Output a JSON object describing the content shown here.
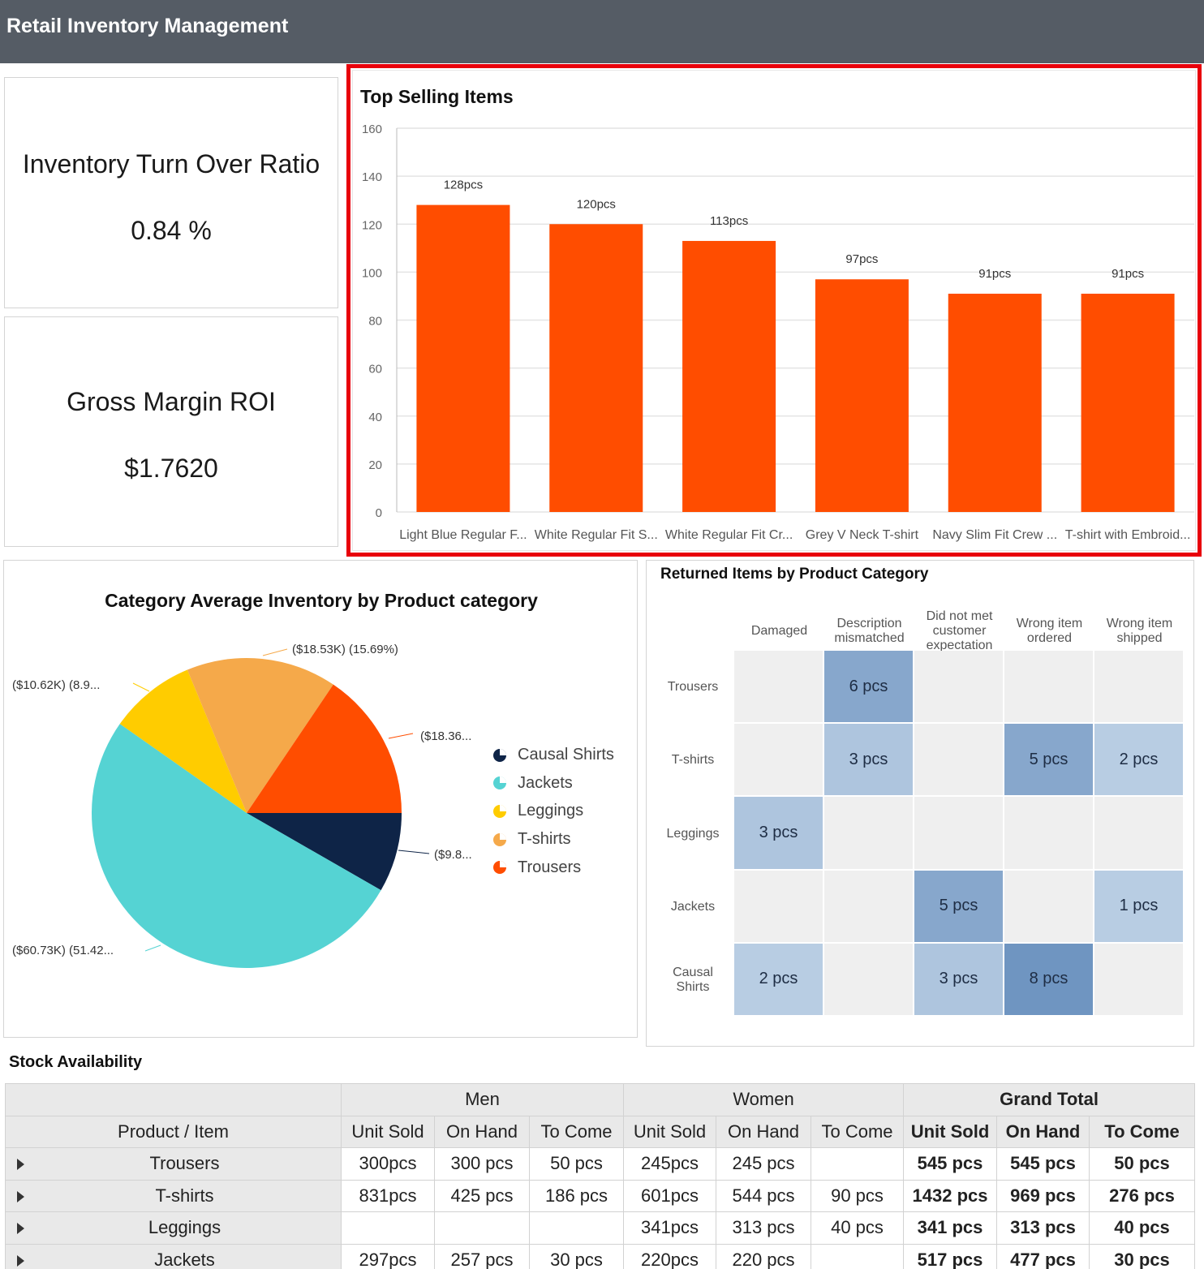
{
  "app": {
    "title": "Retail Inventory Management"
  },
  "kpis": [
    {
      "title": "Inventory Turn Over Ratio",
      "value": "0.84 %"
    },
    {
      "title": "Gross Margin ROI",
      "value": "$1.7620"
    }
  ],
  "colors": {
    "header_bg": "#555c65",
    "bar": "#ff4d00",
    "highlight": "#e8000b",
    "causal_shirts": "#0e2447",
    "jackets": "#55d3d3",
    "leggings": "#ffcc00",
    "tshirts": "#f5a94a",
    "trousers": "#ff4d00"
  },
  "top_selling": {
    "title": "Top Selling Items",
    "chart_data": {
      "type": "bar",
      "categories": [
        "Light Blue Regular F...",
        "White Regular Fit S...",
        "White Regular Fit Cr...",
        "Grey V Neck T-shirt",
        "Navy Slim Fit Crew ...",
        "T-shirt with Embroid..."
      ],
      "values": [
        128,
        120,
        113,
        97,
        91,
        91
      ],
      "data_labels": [
        "128pcs",
        "120pcs",
        "113pcs",
        "97pcs",
        "91pcs",
        "91pcs"
      ],
      "yticks": [
        "0",
        "20",
        "40",
        "60",
        "80",
        "100",
        "120",
        "140",
        "160"
      ],
      "ylim": [
        0,
        160
      ],
      "grid": true
    }
  },
  "category_inventory": {
    "title": "Category Average Inventory by Product category",
    "chart_data": {
      "type": "pie",
      "slices": [
        {
          "name": "Causal Shirts",
          "value": 9.8,
          "label": "($9.8...",
          "color": "#0e2447"
        },
        {
          "name": "Jackets",
          "value": 60.73,
          "label": "($60.73K) (51.42...",
          "color": "#55d3d3"
        },
        {
          "name": "Leggings",
          "value": 10.62,
          "label": "($10.62K) (8.9...",
          "color": "#ffcc00"
        },
        {
          "name": "T-shirts",
          "value": 18.53,
          "label": "($18.53K) (15.69%)",
          "color": "#f5a94a"
        },
        {
          "name": "Trousers",
          "value": 18.36,
          "label": "($18.36...",
          "color": "#ff4d00"
        }
      ],
      "legend": [
        "Causal Shirts",
        "Jackets",
        "Leggings",
        "T-shirts",
        "Trousers"
      ],
      "legend_position": "right"
    }
  },
  "returned_items": {
    "title": "Returned Items by Product Category",
    "chart_data": {
      "type": "heatmap",
      "columns": [
        "Damaged",
        "Description mismatched",
        "Did not met customer expectation",
        "Wrong item ordered",
        "Wrong item shipped"
      ],
      "rows": [
        "Trousers",
        "T-shirts",
        "Leggings",
        "Jackets",
        "Causal Shirts"
      ],
      "values": [
        [
          null,
          6,
          null,
          null,
          null
        ],
        [
          null,
          3,
          null,
          5,
          2
        ],
        [
          3,
          null,
          null,
          null,
          null
        ],
        [
          null,
          null,
          5,
          null,
          1
        ],
        [
          2,
          null,
          3,
          8,
          null
        ]
      ],
      "labels": [
        [
          "",
          "6 pcs",
          "",
          "",
          ""
        ],
        [
          "",
          "3 pcs",
          "",
          "5 pcs",
          "2 pcs"
        ],
        [
          "3 pcs",
          "",
          "",
          "",
          ""
        ],
        [
          "",
          "",
          "5 pcs",
          "",
          "1 pcs"
        ],
        [
          "2 pcs",
          "",
          "3 pcs",
          "8 pcs",
          ""
        ]
      ]
    }
  },
  "stock": {
    "title": "Stock Availability",
    "groups": [
      "Men",
      "Women",
      "Grand Total"
    ],
    "first_col": "Product / Item",
    "subcols": [
      "Unit Sold",
      "On Hand",
      "To Come"
    ],
    "rows": [
      {
        "name": "Trousers",
        "cells": [
          "300pcs",
          "300 pcs",
          "50 pcs",
          "245pcs",
          "245 pcs",
          "",
          "545 pcs",
          "545 pcs",
          "50 pcs"
        ]
      },
      {
        "name": "T-shirts",
        "cells": [
          "831pcs",
          "425 pcs",
          "186 pcs",
          "601pcs",
          "544 pcs",
          "90 pcs",
          "1432 pcs",
          "969 pcs",
          "276 pcs"
        ]
      },
      {
        "name": "Leggings",
        "cells": [
          "",
          "",
          "",
          "341pcs",
          "313 pcs",
          "40 pcs",
          "341 pcs",
          "313 pcs",
          "40 pcs"
        ]
      },
      {
        "name": "Jackets",
        "cells": [
          "297pcs",
          "257 pcs",
          "30 pcs",
          "220pcs",
          "220 pcs",
          "",
          "517 pcs",
          "477 pcs",
          "30 pcs"
        ]
      }
    ]
  }
}
